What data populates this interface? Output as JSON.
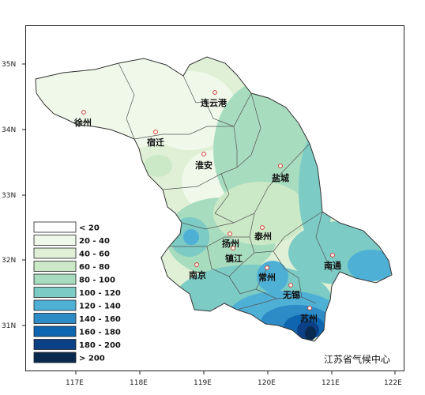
{
  "credit": "江苏省气候中心",
  "axes": {
    "x_ticks": [
      "117E",
      "118E",
      "119E",
      "120E",
      "121E",
      "122E"
    ],
    "y_ticks": [
      "35N",
      "34N",
      "33N",
      "32N",
      "31N"
    ]
  },
  "legend": [
    {
      "label": "< 20",
      "color": "#ffffff"
    },
    {
      "label": "20 - 40",
      "color": "#f0f8ea"
    },
    {
      "label": "40 - 60",
      "color": "#dff0d6"
    },
    {
      "label": "60 - 80",
      "color": "#cce9c7"
    },
    {
      "label": "80 - 100",
      "color": "#a8dcbf"
    },
    {
      "label": "100 - 120",
      "color": "#7ccbc4"
    },
    {
      "label": "120 - 140",
      "color": "#4fb0d6"
    },
    {
      "label": "140 - 160",
      "color": "#2d8bc6"
    },
    {
      "label": "160 - 180",
      "color": "#0f66b0"
    },
    {
      "label": "180 - 200",
      "color": "#0b3f86"
    },
    {
      "label": "> 200",
      "color": "#082a4f"
    }
  ],
  "cities": [
    {
      "name": "连云港",
      "dot": [
        272,
        117
      ],
      "label": [
        254,
        134
      ]
    },
    {
      "name": "徐州",
      "dot": [
        106,
        142
      ],
      "label": [
        94,
        159
      ]
    },
    {
      "name": "宿迁",
      "dot": [
        197,
        167
      ],
      "label": [
        186,
        184
      ]
    },
    {
      "name": "淮安",
      "dot": [
        258,
        195
      ],
      "label": [
        247,
        213
      ]
    },
    {
      "name": "盐城",
      "dot": [
        355,
        210
      ],
      "label": [
        344,
        229
      ]
    },
    {
      "name": "扬州",
      "dot": [
        291,
        296
      ],
      "label": [
        281,
        312
      ]
    },
    {
      "name": "泰州",
      "dot": [
        332,
        288
      ],
      "label": [
        322,
        303
      ]
    },
    {
      "name": "镇江",
      "dot": [
        295,
        314
      ],
      "label": [
        285,
        331
      ]
    },
    {
      "name": "南京",
      "dot": [
        249,
        335
      ],
      "label": [
        239,
        352
      ]
    },
    {
      "name": "南通",
      "dot": [
        421,
        323
      ],
      "label": [
        410,
        340
      ]
    },
    {
      "name": "常州",
      "dot": [
        338,
        339
      ],
      "label": [
        327,
        355
      ]
    },
    {
      "name": "无锡",
      "dot": [
        368,
        361
      ],
      "label": [
        358,
        377
      ]
    },
    {
      "name": "苏州",
      "dot": [
        392,
        390
      ],
      "label": [
        380,
        407
      ]
    }
  ]
}
